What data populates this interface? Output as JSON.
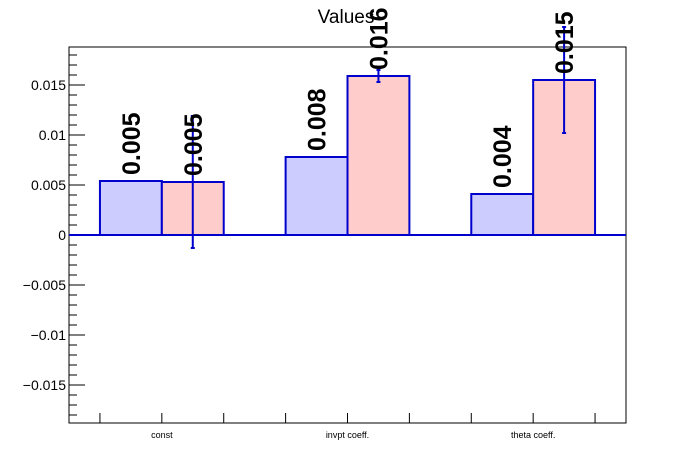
{
  "chart_data": {
    "type": "bar",
    "title": "Values",
    "xlabel": "",
    "ylabel": "",
    "ylim": [
      -0.0188,
      0.0188
    ],
    "yticks": [
      -0.015,
      -0.01,
      -0.005,
      0,
      0.005,
      0.01,
      0.015
    ],
    "ytick_labels": [
      "−0.015",
      "−0.01",
      "−0.005",
      "0",
      "0.005",
      "0.01",
      "0.015"
    ],
    "categories": [
      "const",
      "invpt coeff.",
      "theta coeff."
    ],
    "series": [
      {
        "color": "#ccccff",
        "values": [
          0.0054,
          0.0078,
          0.0041
        ],
        "errors": null,
        "labels": [
          "0.005",
          "0.008",
          "0.004"
        ]
      },
      {
        "color": "#ffcccc",
        "values": [
          0.0053,
          0.0159,
          0.0155
        ],
        "errors": [
          0.0066,
          0.0006,
          0.0053
        ],
        "labels": [
          "0.005",
          "0.016",
          "0.015"
        ]
      }
    ],
    "grid": false,
    "legend": "none",
    "edge_color": "#0000cc"
  }
}
